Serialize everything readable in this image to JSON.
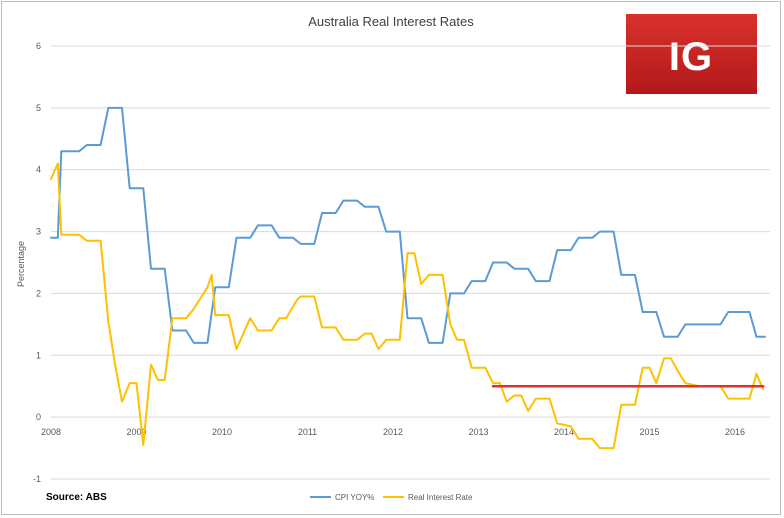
{
  "chart_data": {
    "type": "line",
    "title": "Australia Real Interest Rates",
    "ylabel": "Percentage",
    "xlabel": "",
    "ylim": [
      -1,
      6
    ],
    "yticks": [
      "-1",
      "0",
      "1",
      "2",
      "3",
      "4",
      "5",
      "6"
    ],
    "xlim": [
      2008.0,
      2016.35
    ],
    "xticks": [
      "2008",
      "2009",
      "2010",
      "2011",
      "2012",
      "2013",
      "2014",
      "2015",
      "2016"
    ],
    "grid": "horizontal",
    "legend_position": "bottom",
    "source": "Source: ABS",
    "series": [
      {
        "name": "CPI YOY%",
        "color": "#5b9bd5",
        "points": [
          [
            2008.0,
            2.9
          ],
          [
            2008.08,
            2.9
          ],
          [
            2008.12,
            4.3
          ],
          [
            2008.33,
            4.3
          ],
          [
            2008.42,
            4.4
          ],
          [
            2008.58,
            4.4
          ],
          [
            2008.67,
            5.0
          ],
          [
            2008.83,
            5.0
          ],
          [
            2008.92,
            3.7
          ],
          [
            2009.08,
            3.7
          ],
          [
            2009.17,
            2.4
          ],
          [
            2009.33,
            2.4
          ],
          [
            2009.42,
            1.4
          ],
          [
            2009.58,
            1.4
          ],
          [
            2009.67,
            1.2
          ],
          [
            2009.83,
            1.2
          ],
          [
            2009.92,
            2.1
          ],
          [
            2010.08,
            2.1
          ],
          [
            2010.17,
            2.9
          ],
          [
            2010.33,
            2.9
          ],
          [
            2010.42,
            3.1
          ],
          [
            2010.58,
            3.1
          ],
          [
            2010.67,
            2.9
          ],
          [
            2010.83,
            2.9
          ],
          [
            2010.92,
            2.8
          ],
          [
            2011.08,
            2.8
          ],
          [
            2011.17,
            3.3
          ],
          [
            2011.33,
            3.3
          ],
          [
            2011.42,
            3.5
          ],
          [
            2011.58,
            3.5
          ],
          [
            2011.67,
            3.4
          ],
          [
            2011.83,
            3.4
          ],
          [
            2011.92,
            3.0
          ],
          [
            2012.08,
            3.0
          ],
          [
            2012.17,
            1.6
          ],
          [
            2012.33,
            1.6
          ],
          [
            2012.42,
            1.2
          ],
          [
            2012.58,
            1.2
          ],
          [
            2012.67,
            2.0
          ],
          [
            2012.83,
            2.0
          ],
          [
            2012.92,
            2.2
          ],
          [
            2013.08,
            2.2
          ],
          [
            2013.17,
            2.5
          ],
          [
            2013.33,
            2.5
          ],
          [
            2013.42,
            2.4
          ],
          [
            2013.58,
            2.4
          ],
          [
            2013.67,
            2.2
          ],
          [
            2013.83,
            2.2
          ],
          [
            2013.92,
            2.7
          ],
          [
            2014.08,
            2.7
          ],
          [
            2014.17,
            2.9
          ],
          [
            2014.33,
            2.9
          ],
          [
            2014.42,
            3.0
          ],
          [
            2014.58,
            3.0
          ],
          [
            2014.67,
            2.3
          ],
          [
            2014.83,
            2.3
          ],
          [
            2014.92,
            1.7
          ],
          [
            2015.08,
            1.7
          ],
          [
            2015.17,
            1.3
          ],
          [
            2015.33,
            1.3
          ],
          [
            2015.42,
            1.5
          ],
          [
            2015.83,
            1.5
          ],
          [
            2015.92,
            1.7
          ],
          [
            2016.17,
            1.7
          ],
          [
            2016.25,
            1.3
          ],
          [
            2016.35,
            1.3
          ]
        ]
      },
      {
        "name": "Real Interest Rate",
        "color": "#ffc000",
        "points": [
          [
            2008.0,
            3.85
          ],
          [
            2008.08,
            4.1
          ],
          [
            2008.12,
            2.95
          ],
          [
            2008.33,
            2.95
          ],
          [
            2008.42,
            2.85
          ],
          [
            2008.58,
            2.85
          ],
          [
            2008.67,
            1.55
          ],
          [
            2008.75,
            0.85
          ],
          [
            2008.83,
            0.25
          ],
          [
            2008.92,
            0.55
          ],
          [
            2009.0,
            0.55
          ],
          [
            2009.08,
            -0.45
          ],
          [
            2009.17,
            0.85
          ],
          [
            2009.25,
            0.6
          ],
          [
            2009.33,
            0.6
          ],
          [
            2009.42,
            1.6
          ],
          [
            2009.58,
            1.6
          ],
          [
            2009.67,
            1.75
          ],
          [
            2009.83,
            2.1
          ],
          [
            2009.88,
            2.3
          ],
          [
            2009.92,
            1.65
          ],
          [
            2010.08,
            1.65
          ],
          [
            2010.17,
            1.1
          ],
          [
            2010.33,
            1.6
          ],
          [
            2010.42,
            1.4
          ],
          [
            2010.58,
            1.4
          ],
          [
            2010.67,
            1.6
          ],
          [
            2010.75,
            1.6
          ],
          [
            2010.88,
            1.9
          ],
          [
            2010.92,
            1.95
          ],
          [
            2011.08,
            1.95
          ],
          [
            2011.17,
            1.45
          ],
          [
            2011.33,
            1.45
          ],
          [
            2011.42,
            1.25
          ],
          [
            2011.58,
            1.25
          ],
          [
            2011.67,
            1.35
          ],
          [
            2011.75,
            1.35
          ],
          [
            2011.83,
            1.1
          ],
          [
            2011.92,
            1.25
          ],
          [
            2012.08,
            1.25
          ],
          [
            2012.17,
            2.65
          ],
          [
            2012.25,
            2.65
          ],
          [
            2012.33,
            2.15
          ],
          [
            2012.42,
            2.3
          ],
          [
            2012.58,
            2.3
          ],
          [
            2012.67,
            1.5
          ],
          [
            2012.75,
            1.25
          ],
          [
            2012.83,
            1.25
          ],
          [
            2012.92,
            0.8
          ],
          [
            2013.08,
            0.8
          ],
          [
            2013.17,
            0.55
          ],
          [
            2013.25,
            0.55
          ],
          [
            2013.33,
            0.25
          ],
          [
            2013.42,
            0.35
          ],
          [
            2013.5,
            0.35
          ],
          [
            2013.58,
            0.1
          ],
          [
            2013.67,
            0.3
          ],
          [
            2013.83,
            0.3
          ],
          [
            2013.92,
            -0.1
          ],
          [
            2014.08,
            -0.15
          ],
          [
            2014.17,
            -0.35
          ],
          [
            2014.33,
            -0.35
          ],
          [
            2014.42,
            -0.5
          ],
          [
            2014.58,
            -0.5
          ],
          [
            2014.67,
            0.2
          ],
          [
            2014.83,
            0.2
          ],
          [
            2014.92,
            0.8
          ],
          [
            2015.0,
            0.8
          ],
          [
            2015.08,
            0.55
          ],
          [
            2015.17,
            0.95
          ],
          [
            2015.25,
            0.95
          ],
          [
            2015.33,
            0.75
          ],
          [
            2015.42,
            0.55
          ],
          [
            2015.58,
            0.5
          ],
          [
            2015.83,
            0.5
          ],
          [
            2015.92,
            0.3
          ],
          [
            2016.17,
            0.3
          ],
          [
            2016.25,
            0.7
          ],
          [
            2016.33,
            0.45
          ]
        ]
      },
      {
        "name": "",
        "color": "#e03030",
        "points": [
          [
            2013.17,
            0.5
          ],
          [
            2016.33,
            0.5
          ]
        ]
      }
    ]
  },
  "logo": {
    "text": "IG",
    "background": "#c8201d"
  }
}
